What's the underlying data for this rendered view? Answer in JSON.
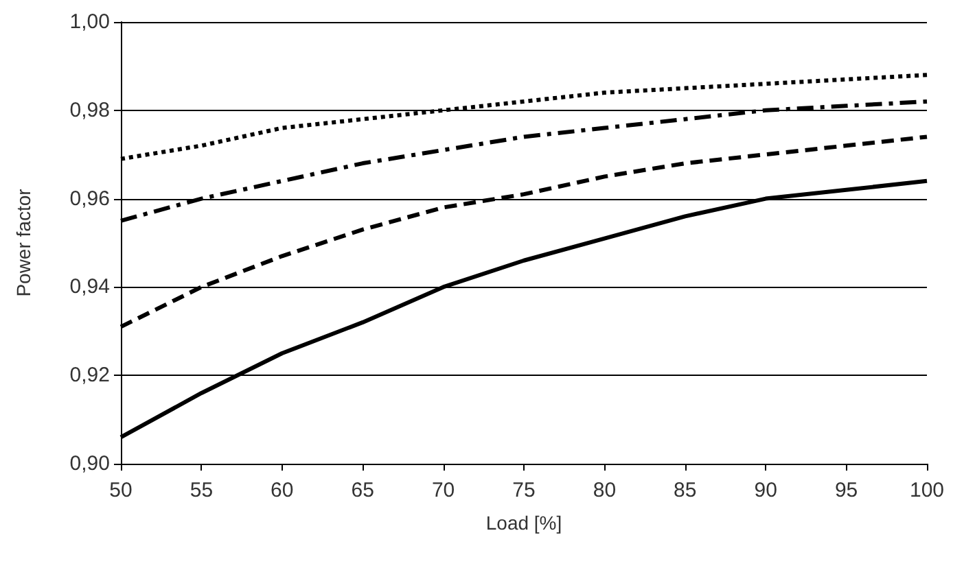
{
  "chart_data": {
    "type": "line",
    "xlabel": "Load [%]",
    "ylabel": "Power factor",
    "x": [
      50,
      55,
      60,
      65,
      70,
      75,
      80,
      85,
      90,
      95,
      100
    ],
    "series": [
      {
        "color": "#000000",
        "line_style": "solid",
        "values": [
          0.906,
          0.916,
          0.925,
          0.932,
          0.94,
          0.946,
          0.951,
          0.956,
          0.96,
          0.962,
          0.964
        ]
      },
      {
        "color": "#000000",
        "line_style": "dashed",
        "values": [
          0.931,
          0.94,
          0.947,
          0.953,
          0.958,
          0.961,
          0.965,
          0.968,
          0.97,
          0.972,
          0.974
        ]
      },
      {
        "color": "#000000",
        "line_style": "dashdot",
        "values": [
          0.955,
          0.96,
          0.964,
          0.968,
          0.971,
          0.974,
          0.976,
          0.978,
          0.98,
          0.981,
          0.982
        ]
      },
      {
        "color": "#000000",
        "line_style": "dotted",
        "values": [
          0.969,
          0.972,
          0.976,
          0.978,
          0.98,
          0.982,
          0.984,
          0.985,
          0.986,
          0.987,
          0.988
        ]
      }
    ],
    "xlim": [
      50,
      100
    ],
    "xticks": [
      50,
      55,
      60,
      65,
      70,
      75,
      80,
      85,
      90,
      95,
      100
    ],
    "ylim": [
      0.9,
      1.0
    ],
    "yticks": [
      {
        "value": 0.9,
        "label": "0,90"
      },
      {
        "value": 0.92,
        "label": "0,92"
      },
      {
        "value": 0.94,
        "label": "0,94"
      },
      {
        "value": 0.96,
        "label": "0,96"
      },
      {
        "value": 0.98,
        "label": "0,98"
      },
      {
        "value": 1.0,
        "label": "1,00"
      }
    ],
    "grid": "y",
    "marker": "none"
  }
}
